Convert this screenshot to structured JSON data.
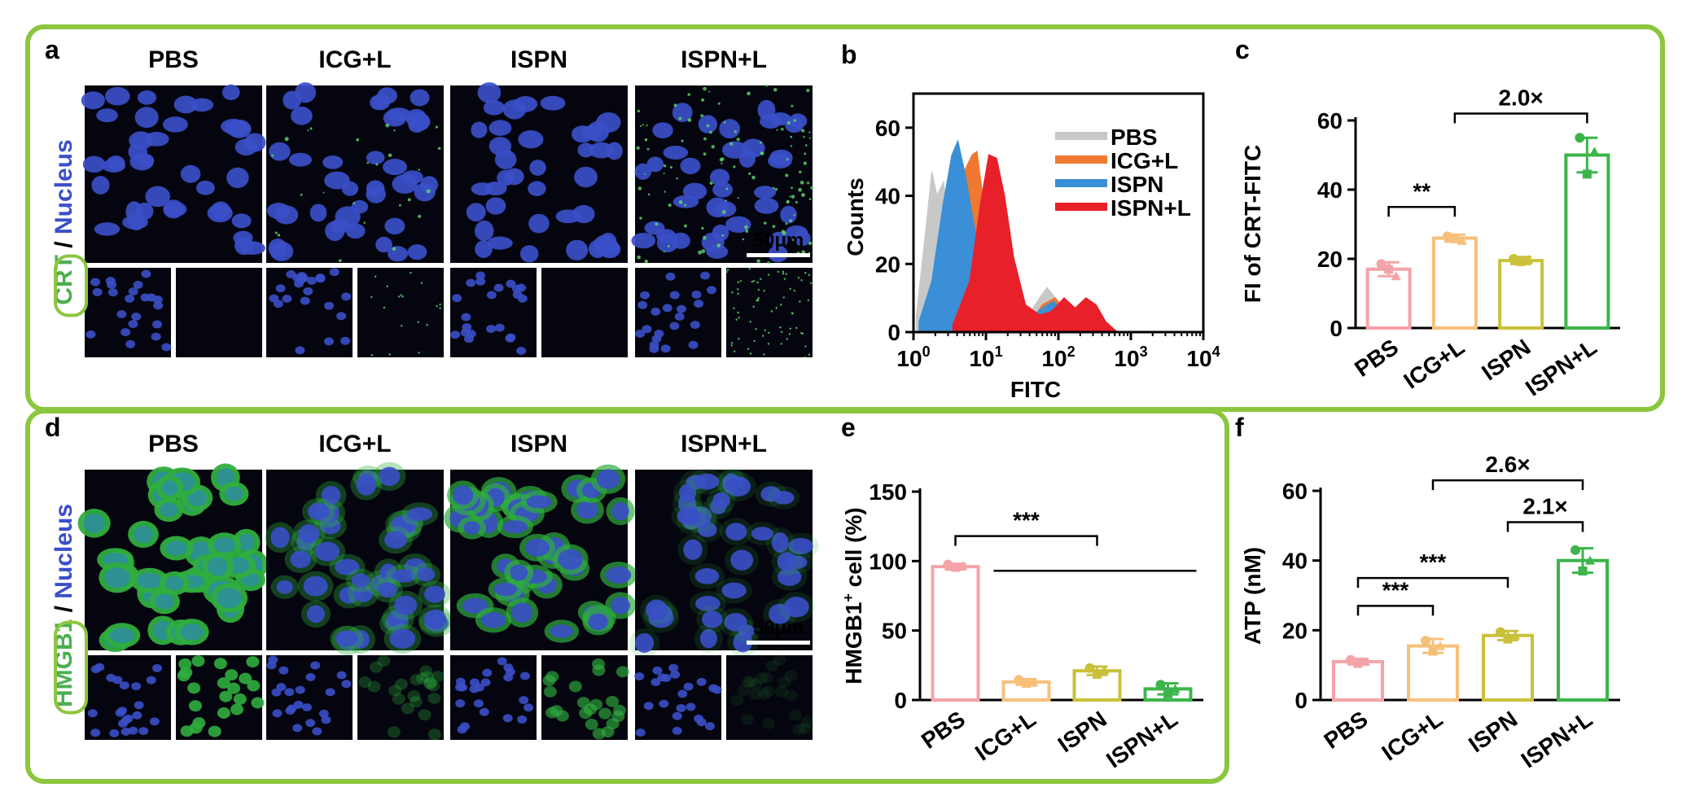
{
  "panels": {
    "a": {
      "letter": "a",
      "columns": [
        "PBS",
        "ICG+L",
        "ISPN",
        "ISPN+L"
      ],
      "ylabel_marker": "CRT",
      "ylabel_sep": " / ",
      "ylabel_stain": "Nucleus",
      "scale_bar": "50μm"
    },
    "d": {
      "letter": "d",
      "columns": [
        "PBS",
        "ICG+L",
        "ISPN",
        "ISPN+L"
      ],
      "ylabel_marker": "HMGB1",
      "ylabel_sep": " / ",
      "ylabel_stain": "Nucleus",
      "scale_bar": "50μm"
    },
    "b": {
      "letter": "b"
    },
    "c": {
      "letter": "c"
    },
    "e": {
      "letter": "e"
    },
    "f": {
      "letter": "f"
    }
  },
  "colors": {
    "frame_green": "#8cc63f",
    "nucleus_blue": "#3a4fc8",
    "crt_green": "#4caf50",
    "PBS": "#f4a3a8",
    "ICG+L": "#f7c07a",
    "ISPN": "#c9c13a",
    "ISPN+L": "#3cb54a",
    "hist_PBS": "#c8c8c8",
    "hist_ICG": "#f07830",
    "hist_ISPN": "#3a8fd6",
    "hist_ISPNL": "#e8202a"
  },
  "chart_data": [
    {
      "id": "b",
      "type": "area",
      "xlabel": "FITC",
      "ylabel": "Counts",
      "xscale": "log",
      "xlim": [
        1,
        10000
      ],
      "ylim": [
        0,
        70
      ],
      "yticks": [
        0,
        20,
        40,
        60
      ],
      "xticks": [
        {
          "base": "10",
          "exp": "0"
        },
        {
          "base": "10",
          "exp": "1"
        },
        {
          "base": "10",
          "exp": "2"
        },
        {
          "base": "10",
          "exp": "3"
        },
        {
          "base": "10",
          "exp": "4"
        }
      ],
      "legend_position": "top-right",
      "series": [
        {
          "name": "PBS",
          "color": "#c8c8c8",
          "points": [
            [
              1.1,
              5
            ],
            [
              1.4,
              25
            ],
            [
              1.8,
              47
            ],
            [
              2.1,
              40
            ],
            [
              2.6,
              44
            ],
            [
              3.1,
              28
            ],
            [
              4,
              12
            ],
            [
              6,
              4
            ],
            [
              10,
              1
            ],
            [
              30,
              1
            ],
            [
              55,
              10
            ],
            [
              70,
              13
            ],
            [
              90,
              10
            ],
            [
              130,
              5
            ],
            [
              220,
              1
            ]
          ]
        },
        {
          "name": "ICG+L",
          "color": "#f07830",
          "points": [
            [
              1.5,
              3
            ],
            [
              2.5,
              18
            ],
            [
              4.5,
              45
            ],
            [
              6.5,
              52
            ],
            [
              7.5,
              53
            ],
            [
              9,
              40
            ],
            [
              13,
              18
            ],
            [
              20,
              5
            ],
            [
              40,
              2
            ],
            [
              60,
              8
            ],
            [
              90,
              10
            ],
            [
              130,
              6
            ],
            [
              250,
              1
            ]
          ]
        },
        {
          "name": "ISPN",
          "color": "#3a8fd6",
          "points": [
            [
              1.2,
              3
            ],
            [
              1.8,
              15
            ],
            [
              2.6,
              38
            ],
            [
              3.4,
              52
            ],
            [
              4.1,
              56
            ],
            [
              5.2,
              46
            ],
            [
              7,
              30
            ],
            [
              9,
              15
            ],
            [
              14,
              5
            ],
            [
              30,
              2
            ],
            [
              60,
              7
            ],
            [
              85,
              9
            ],
            [
              120,
              6
            ],
            [
              250,
              1
            ]
          ]
        },
        {
          "name": "ISPN+L",
          "color": "#e8202a",
          "points": [
            [
              3.5,
              2
            ],
            [
              6,
              15
            ],
            [
              8.5,
              38
            ],
            [
              11,
              52
            ],
            [
              14,
              51
            ],
            [
              18,
              40
            ],
            [
              24,
              22
            ],
            [
              35,
              8
            ],
            [
              55,
              5
            ],
            [
              80,
              6
            ],
            [
              120,
              10
            ],
            [
              170,
              7
            ],
            [
              240,
              10
            ],
            [
              330,
              8
            ],
            [
              450,
              3
            ],
            [
              650,
              0
            ]
          ]
        }
      ]
    },
    {
      "id": "c",
      "type": "bar",
      "ylabel": "FI of CRT-FITC",
      "categories": [
        "PBS",
        "ICG+L",
        "ISPN",
        "ISPN+L"
      ],
      "values": [
        17,
        26,
        19.5,
        50
      ],
      "errors": [
        2,
        1,
        1,
        5
      ],
      "points": [
        [
          18.5,
          17,
          15
        ],
        [
          26.5,
          25.8,
          25.2
        ],
        [
          20,
          19.2,
          19.8
        ],
        [
          55,
          44.5,
          51
        ]
      ],
      "ylim": [
        0,
        60
      ],
      "yticks": [
        0,
        20,
        40,
        60
      ],
      "annotations": [
        {
          "from": 0,
          "to": 1,
          "label": "**",
          "y": 35
        },
        {
          "from": 1,
          "to": 3,
          "label": "2.0×",
          "y": 62
        }
      ]
    },
    {
      "id": "e",
      "type": "bar",
      "ylabel": "HMGB1",
      "ylabel_sup": "+",
      "ylabel_tail": " cell (%)",
      "categories": [
        "PBS",
        "ICG+L",
        "ISPN",
        "ISPN+L"
      ],
      "values": [
        96,
        13,
        21,
        8
      ],
      "errors": [
        2,
        2,
        3,
        4
      ],
      "points": [
        [
          97.5,
          95.5,
          96.5
        ],
        [
          14.5,
          12,
          12.5
        ],
        [
          23,
          18.5,
          21.5
        ],
        [
          11,
          4.5,
          8
        ]
      ],
      "ylim": [
        0,
        150
      ],
      "yticks": [
        0,
        50,
        100,
        150
      ],
      "annotations": [
        {
          "from": 0,
          "to": 2,
          "label": "***",
          "y": 118
        }
      ]
    },
    {
      "id": "f",
      "type": "bar",
      "ylabel": "ATP (nM)",
      "categories": [
        "PBS",
        "ICG+L",
        "ISPN",
        "ISPN+L"
      ],
      "values": [
        11,
        15.5,
        18.5,
        40
      ],
      "errors": [
        0.8,
        2,
        1.3,
        3.5
      ],
      "points": [
        [
          11.5,
          10.5,
          11
        ],
        [
          17,
          14,
          15.5
        ],
        [
          19.5,
          17.5,
          18.5
        ],
        [
          43,
          37,
          40
        ]
      ],
      "ylim": [
        0,
        60
      ],
      "yticks": [
        0,
        20,
        40,
        60
      ],
      "annotations": [
        {
          "from": 0,
          "to": 1,
          "label": "***",
          "y": 27
        },
        {
          "from": 0,
          "to": 2,
          "label": "***",
          "y": 35
        },
        {
          "from": 2,
          "to": 3,
          "label": "2.1×",
          "y": 51
        },
        {
          "from": 1,
          "to": 3,
          "label": "2.6×",
          "y": 63
        }
      ]
    }
  ]
}
